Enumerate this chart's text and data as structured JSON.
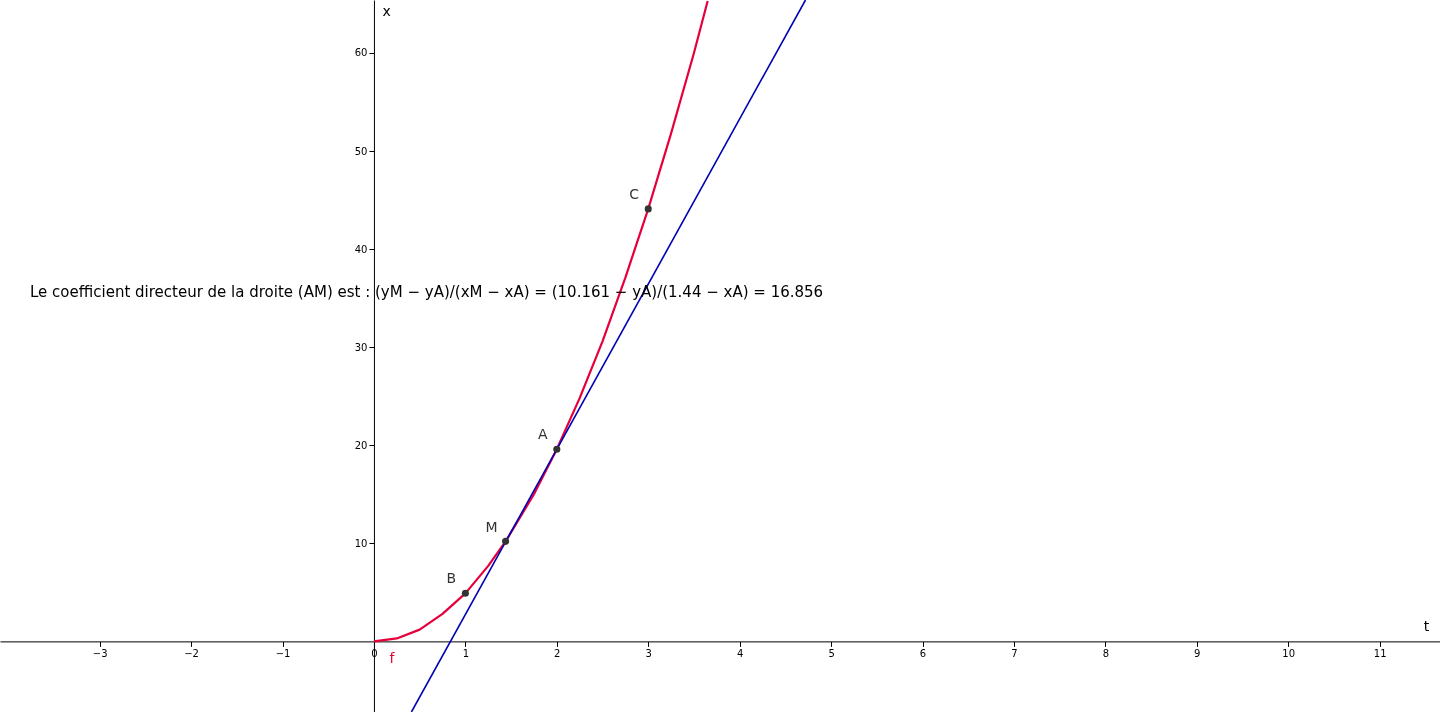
{
  "chart_data": {
    "type": "line",
    "xlabel": "t",
    "ylabel": "x",
    "xlim": [
      -4.09,
      11.66
    ],
    "ylim": [
      -7.2,
      65.4
    ],
    "xticks": [
      -3,
      -2,
      -1,
      0,
      1,
      2,
      3,
      4,
      5,
      6,
      7,
      8,
      9,
      10,
      11
    ],
    "yticks": [
      10,
      20,
      30,
      40,
      50,
      60
    ],
    "grid": false,
    "series": [
      {
        "name": "f",
        "color": "#e6003a",
        "x": [
          0,
          0.25,
          0.5,
          0.75,
          1,
          1.25,
          1.44,
          1.75,
          2,
          2.25,
          2.5,
          2.75,
          3,
          3.25,
          3.5,
          3.65
        ],
        "values": [
          0,
          0.3,
          1.2,
          2.8,
          4.9,
          7.7,
          10.2,
          15,
          19.6,
          24.8,
          30.6,
          37.1,
          44.1,
          51.8,
          60,
          65.3
        ]
      },
      {
        "color": "#0000b4",
        "x": [
          0.41,
          4.72
        ],
        "values": [
          -7.2,
          65.4
        ]
      },
      {
        "type": "scatter",
        "color": "#333333",
        "marker": "circle",
        "x": [
          1,
          1.44,
          2,
          3
        ],
        "values": [
          4.9,
          10.2,
          19.6,
          44.1
        ]
      }
    ],
    "annotations": [
      {
        "text": "B",
        "x": 1,
        "y": 4.9
      },
      {
        "text": "M",
        "x": 1.44,
        "y": 10.161
      },
      {
        "text": "A",
        "x": 2,
        "y": 19.6
      },
      {
        "text": "C",
        "x": 3,
        "y": 44.1
      },
      "Le coefficient directeur de la droite (AM) est : (yM − yA)/(xM − xA) = (10.161 − yA)/(1.44 − xA) = 16.856"
    ]
  }
}
